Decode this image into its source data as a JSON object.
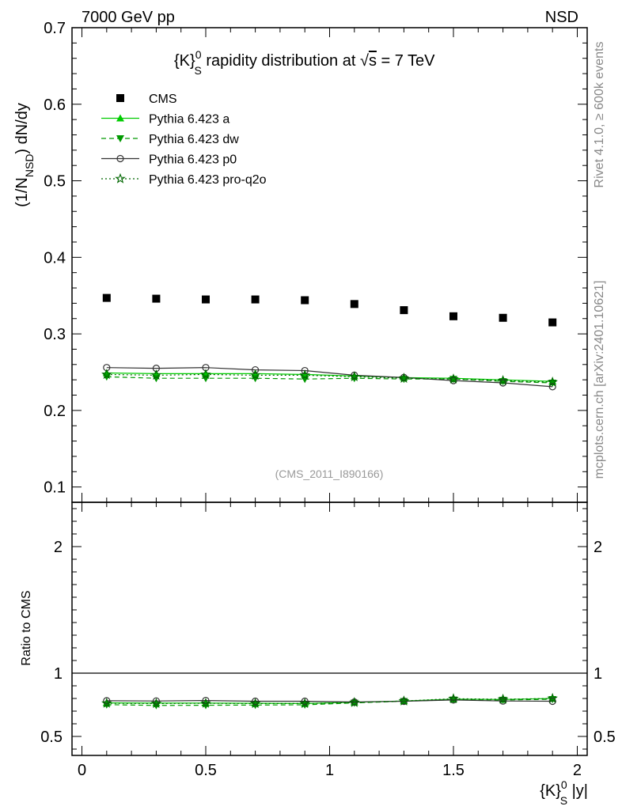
{
  "header": {
    "energy_label": "7000 GeV pp",
    "process_label": "NSD"
  },
  "side_labels": {
    "rivet": "Rivet 4.1.0, ≥ 600k events",
    "mcplots": "mcplots.cern.ch [arXiv:2401.10621]"
  },
  "chart_data": [
    {
      "type": "scatter",
      "panel": "main",
      "title": {
        "pre": "{K}",
        "sup": "0",
        "sub": "S",
        "post": " rapidity distribution at ",
        "sqrt": "√",
        "s": "s",
        "energy": " = 7 TeV"
      },
      "ylabel": {
        "pre": "(1/N",
        "sub": "NSD",
        "post": ") dN/dy"
      },
      "watermark": "(CMS_2011_I890166)",
      "xlim": [
        -0.04,
        2.04
      ],
      "ylim": [
        0.08,
        0.7
      ],
      "y_ticks": [
        "0.1",
        "0.2",
        "0.3",
        "0.4",
        "0.5",
        "0.6",
        "0.7"
      ],
      "y_tick_values": [
        0.1,
        0.2,
        0.3,
        0.4,
        0.5,
        0.6,
        0.7
      ],
      "x": [
        0.1,
        0.3,
        0.5,
        0.7,
        0.9,
        1.1,
        1.3,
        1.5,
        1.7,
        1.9
      ],
      "legend_position": "top-left",
      "series": [
        {
          "name": "CMS",
          "kind": "data",
          "marker": "square",
          "color": "#000000",
          "line": "none",
          "values": [
            0.347,
            0.346,
            0.345,
            0.345,
            0.344,
            0.339,
            0.331,
            0.323,
            0.321,
            0.315
          ]
        },
        {
          "name": "Pythia 6.423 a",
          "kind": "mc",
          "marker": "triangle-up",
          "color": "#00cc00",
          "line": "solid",
          "values": [
            0.249,
            0.248,
            0.248,
            0.248,
            0.247,
            0.245,
            0.243,
            0.242,
            0.24,
            0.238
          ]
        },
        {
          "name": "Pythia 6.423 dw",
          "kind": "mc",
          "marker": "triangle-down",
          "color": "#009900",
          "line": "dashed",
          "values": [
            0.244,
            0.242,
            0.242,
            0.242,
            0.241,
            0.242,
            0.241,
            0.241,
            0.238,
            0.236
          ]
        },
        {
          "name": "Pythia 6.423 p0",
          "kind": "mc",
          "marker": "circle-open",
          "color": "#333333",
          "line": "solid",
          "values": [
            0.256,
            0.255,
            0.256,
            0.253,
            0.252,
            0.246,
            0.243,
            0.239,
            0.236,
            0.231
          ]
        },
        {
          "name": "Pythia 6.423 pro-q2o",
          "kind": "mc",
          "marker": "star-open",
          "color": "#006600",
          "line": "dotted",
          "values": [
            0.247,
            0.246,
            0.247,
            0.246,
            0.246,
            0.244,
            0.242,
            0.241,
            0.239,
            0.237
          ]
        }
      ]
    },
    {
      "type": "line",
      "panel": "ratio",
      "ylabel": "Ratio to CMS",
      "xlabel": {
        "pre": "{K}",
        "sup": "0",
        "sub": "S",
        "post": " |y|"
      },
      "xlim": [
        -0.04,
        2.04
      ],
      "ylim": [
        0.35,
        2.35
      ],
      "x_ticks": [
        "0",
        "0.5",
        "1",
        "1.5",
        "2"
      ],
      "x_tick_values": [
        0,
        0.5,
        1,
        1.5,
        2
      ],
      "y_ticks": [
        "0.5",
        "1",
        "2"
      ],
      "y_tick_values": [
        0.5,
        1,
        2
      ],
      "reference_line": 1,
      "x": [
        0.1,
        0.3,
        0.5,
        0.7,
        0.9,
        1.1,
        1.3,
        1.5,
        1.7,
        1.9
      ],
      "series": [
        {
          "name": "Pythia 6.423 a",
          "marker": "triangle-up",
          "color": "#00cc00",
          "line": "solid",
          "values": [
            0.765,
            0.763,
            0.763,
            0.762,
            0.76,
            0.77,
            0.78,
            0.795,
            0.792,
            0.8
          ]
        },
        {
          "name": "Pythia 6.423 dw",
          "marker": "triangle-down",
          "color": "#009900",
          "line": "dashed",
          "values": [
            0.751,
            0.745,
            0.746,
            0.748,
            0.75,
            0.765,
            0.778,
            0.79,
            0.788,
            0.794
          ]
        },
        {
          "name": "Pythia 6.423 p0",
          "marker": "circle-open",
          "color": "#333333",
          "line": "solid",
          "values": [
            0.782,
            0.78,
            0.784,
            0.778,
            0.778,
            0.772,
            0.778,
            0.788,
            0.78,
            0.778
          ]
        },
        {
          "name": "Pythia 6.423 pro-q2o",
          "marker": "star-open",
          "color": "#006600",
          "line": "dotted",
          "values": [
            0.762,
            0.76,
            0.762,
            0.76,
            0.76,
            0.768,
            0.78,
            0.798,
            0.794,
            0.8
          ]
        }
      ]
    }
  ]
}
